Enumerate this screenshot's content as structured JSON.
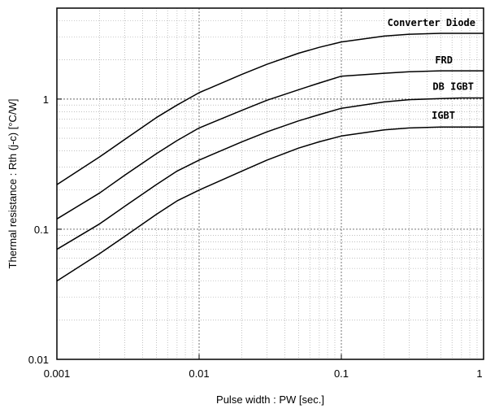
{
  "chart_data": {
    "type": "line",
    "xscale": "log",
    "yscale": "log",
    "xlim": [
      0.001,
      1
    ],
    "ylim": [
      0.01,
      5
    ],
    "xlabel": "Pulse width : PW [sec.]",
    "ylabel": "Thermal resistance : Rth (j-c) [°C/W]",
    "grid": true,
    "x_ticks": [
      {
        "value": 0.001,
        "label": "0.001"
      },
      {
        "value": 0.01,
        "label": "0.01"
      },
      {
        "value": 0.1,
        "label": "0.1"
      },
      {
        "value": 1,
        "label": "1"
      }
    ],
    "y_ticks": [
      {
        "value": 0.01,
        "label": "0.01"
      },
      {
        "value": 0.1,
        "label": "0.1"
      },
      {
        "value": 1,
        "label": "1"
      }
    ],
    "series": [
      {
        "name": "Converter Diode",
        "x": [
          0.001,
          0.002,
          0.003,
          0.005,
          0.007,
          0.01,
          0.02,
          0.03,
          0.05,
          0.07,
          0.1,
          0.2,
          0.3,
          0.5,
          0.7,
          1
        ],
        "y": [
          0.22,
          0.36,
          0.49,
          0.72,
          0.9,
          1.12,
          1.55,
          1.85,
          2.25,
          2.5,
          2.75,
          3.05,
          3.15,
          3.2,
          3.2,
          3.2
        ]
      },
      {
        "name": "FRD",
        "x": [
          0.001,
          0.002,
          0.003,
          0.005,
          0.007,
          0.01,
          0.02,
          0.03,
          0.05,
          0.07,
          0.1,
          0.2,
          0.3,
          0.5,
          0.7,
          1
        ],
        "y": [
          0.12,
          0.19,
          0.26,
          0.38,
          0.48,
          0.6,
          0.82,
          0.98,
          1.18,
          1.33,
          1.5,
          1.58,
          1.62,
          1.65,
          1.65,
          1.65
        ]
      },
      {
        "name": "DB IGBT",
        "x": [
          0.001,
          0.002,
          0.003,
          0.005,
          0.007,
          0.01,
          0.02,
          0.03,
          0.05,
          0.07,
          0.1,
          0.2,
          0.3,
          0.5,
          0.7,
          1
        ],
        "y": [
          0.07,
          0.11,
          0.15,
          0.22,
          0.28,
          0.34,
          0.47,
          0.56,
          0.68,
          0.76,
          0.85,
          0.95,
          0.99,
          1.01,
          1.02,
          1.02
        ]
      },
      {
        "name": "IGBT",
        "x": [
          0.001,
          0.002,
          0.003,
          0.005,
          0.007,
          0.01,
          0.02,
          0.03,
          0.05,
          0.07,
          0.1,
          0.2,
          0.3,
          0.5,
          0.7,
          1
        ],
        "y": [
          0.04,
          0.065,
          0.088,
          0.13,
          0.165,
          0.2,
          0.28,
          0.34,
          0.42,
          0.47,
          0.52,
          0.58,
          0.6,
          0.61,
          0.61,
          0.61
        ]
      }
    ]
  }
}
